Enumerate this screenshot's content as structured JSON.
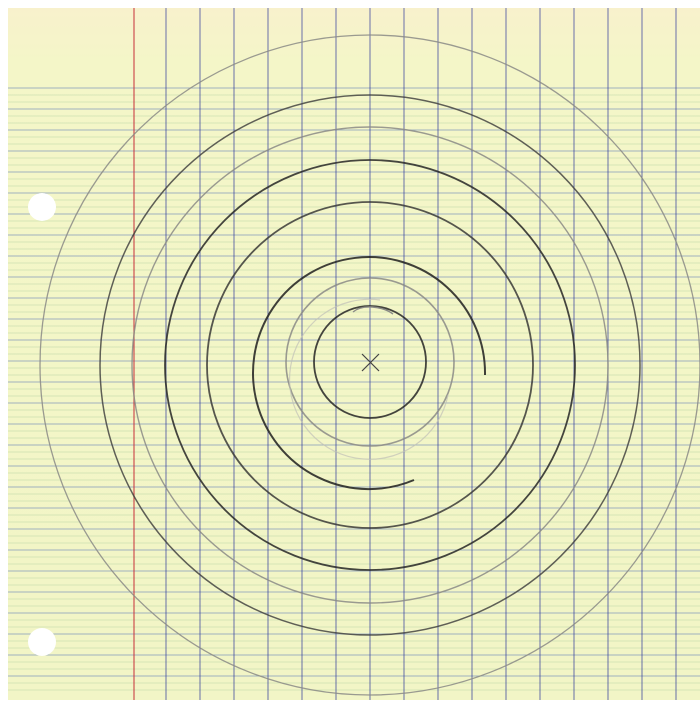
{
  "scene": {
    "kind": "hand-drawn concentric circles on graph/ledger paper",
    "paper_color": "#f4f6c8",
    "paper_top_tint": "#f8f1cc",
    "horizontal_rule_color": "#2a4fb0",
    "secondary_rule_color": "#89b98a",
    "vertical_rule_color": "#26309a",
    "margin_line_color": "#c8343c",
    "pencil_dark": "#262626",
    "pencil_light": "#8a8a86",
    "punch_hole_color": "#ffffff",
    "rings_count": 9,
    "punch_holes_count": 2,
    "center_mark_glyph": "×"
  }
}
